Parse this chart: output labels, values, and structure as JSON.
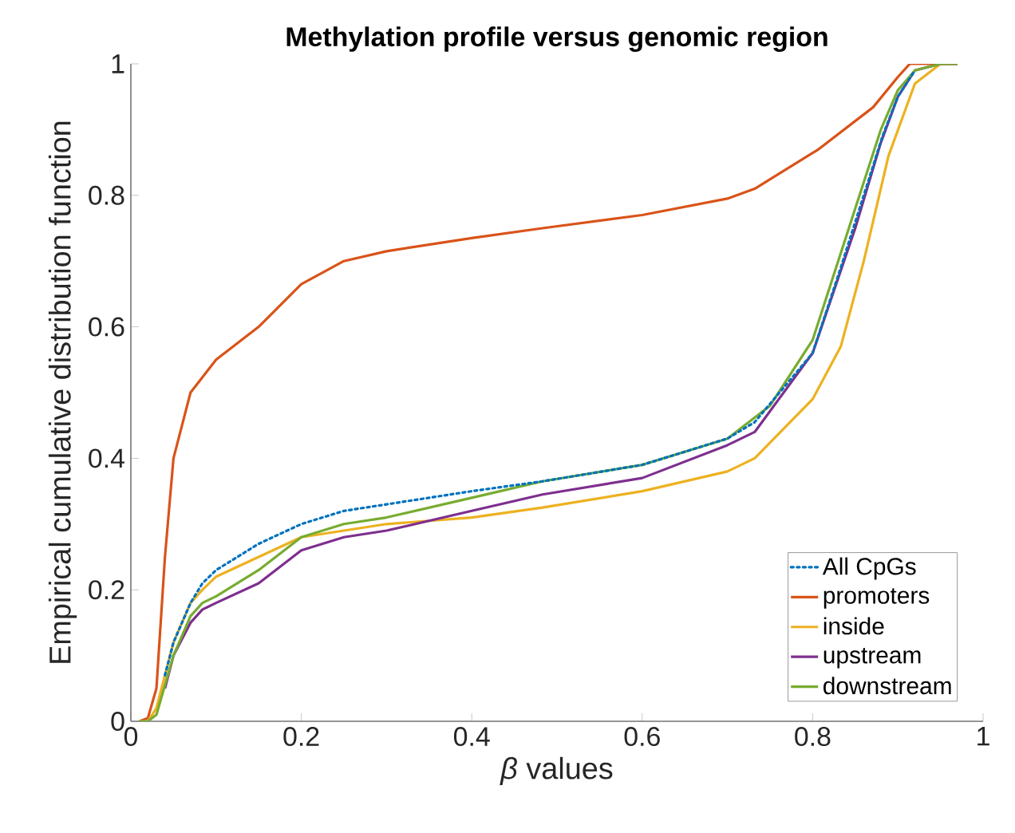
{
  "chart_data": {
    "type": "line",
    "title": "Methylation profile versus genomic region",
    "xlabel": "*β* values",
    "ylabel": "Empirical cumulative distribution function",
    "xlim": [
      0,
      1
    ],
    "ylim": [
      0,
      1
    ],
    "xticks": [
      0,
      0.2,
      0.4,
      0.6,
      0.8,
      1
    ],
    "yticks": [
      0,
      0.2,
      0.4,
      0.6,
      0.8,
      1
    ],
    "grid": false,
    "legend": "bottom right",
    "series": [
      {
        "name": "All CpGs",
        "color": "#0072bd",
        "line_style": "dotted",
        "x": [
          0.04,
          0.05,
          0.07,
          0.084,
          0.1,
          0.15,
          0.2,
          0.25,
          0.3,
          0.4,
          0.483,
          0.6,
          0.7,
          0.732,
          0.8,
          0.833,
          0.86,
          0.882,
          0.9,
          0.92
        ],
        "values": [
          0.07,
          0.12,
          0.18,
          0.21,
          0.23,
          0.27,
          0.3,
          0.32,
          0.33,
          0.35,
          0.365,
          0.39,
          0.43,
          0.455,
          0.56,
          0.69,
          0.8,
          0.89,
          0.95,
          0.99
        ]
      },
      {
        "name": "promoters",
        "color": "#d95319",
        "line_style": "solid",
        "x": [
          0.01,
          0.02,
          0.03,
          0.04,
          0.05,
          0.07,
          0.1,
          0.15,
          0.2,
          0.25,
          0.3,
          0.4,
          0.483,
          0.6,
          0.7,
          0.732,
          0.807,
          0.871,
          0.9,
          0.914,
          0.95,
          0.97
        ],
        "values": [
          0,
          0.005,
          0.05,
          0.25,
          0.4,
          0.5,
          0.55,
          0.6,
          0.665,
          0.7,
          0.715,
          0.735,
          0.75,
          0.77,
          0.795,
          0.81,
          0.87,
          0.934,
          0.98,
          1,
          1,
          1
        ]
      },
      {
        "name": "inside",
        "color": "#edb120",
        "line_style": "solid",
        "x": [
          0.01,
          0.02,
          0.03,
          0.05,
          0.07,
          0.084,
          0.1,
          0.15,
          0.2,
          0.3,
          0.4,
          0.483,
          0.6,
          0.7,
          0.732,
          0.8,
          0.833,
          0.86,
          0.889,
          0.92,
          0.95,
          0.97
        ],
        "values": [
          0,
          0,
          0.02,
          0.12,
          0.18,
          0.2,
          0.22,
          0.25,
          0.28,
          0.3,
          0.31,
          0.325,
          0.35,
          0.38,
          0.4,
          0.49,
          0.57,
          0.7,
          0.86,
          0.97,
          1,
          1
        ]
      },
      {
        "name": "upstream",
        "color": "#7e2f8e",
        "line_style": "solid",
        "x": [
          0.04,
          0.05,
          0.07,
          0.084,
          0.1,
          0.15,
          0.2,
          0.25,
          0.3,
          0.4,
          0.483,
          0.6,
          0.7,
          0.732,
          0.8,
          0.85,
          0.88,
          0.9,
          0.92,
          0.95,
          0.97
        ],
        "values": [
          0.05,
          0.1,
          0.15,
          0.17,
          0.18,
          0.21,
          0.26,
          0.28,
          0.29,
          0.32,
          0.345,
          0.37,
          0.42,
          0.44,
          0.56,
          0.75,
          0.88,
          0.95,
          0.99,
          1,
          1
        ]
      },
      {
        "name": "downstream",
        "color": "#77ac30",
        "line_style": "solid",
        "x": [
          0.01,
          0.02,
          0.03,
          0.05,
          0.07,
          0.084,
          0.1,
          0.15,
          0.2,
          0.25,
          0.3,
          0.4,
          0.483,
          0.6,
          0.7,
          0.75,
          0.8,
          0.85,
          0.88,
          0.9,
          0.92,
          0.95,
          0.97
        ],
        "values": [
          0,
          0,
          0.01,
          0.1,
          0.16,
          0.18,
          0.19,
          0.23,
          0.28,
          0.3,
          0.31,
          0.34,
          0.365,
          0.39,
          0.43,
          0.48,
          0.58,
          0.78,
          0.9,
          0.96,
          0.99,
          1,
          1
        ]
      }
    ]
  }
}
